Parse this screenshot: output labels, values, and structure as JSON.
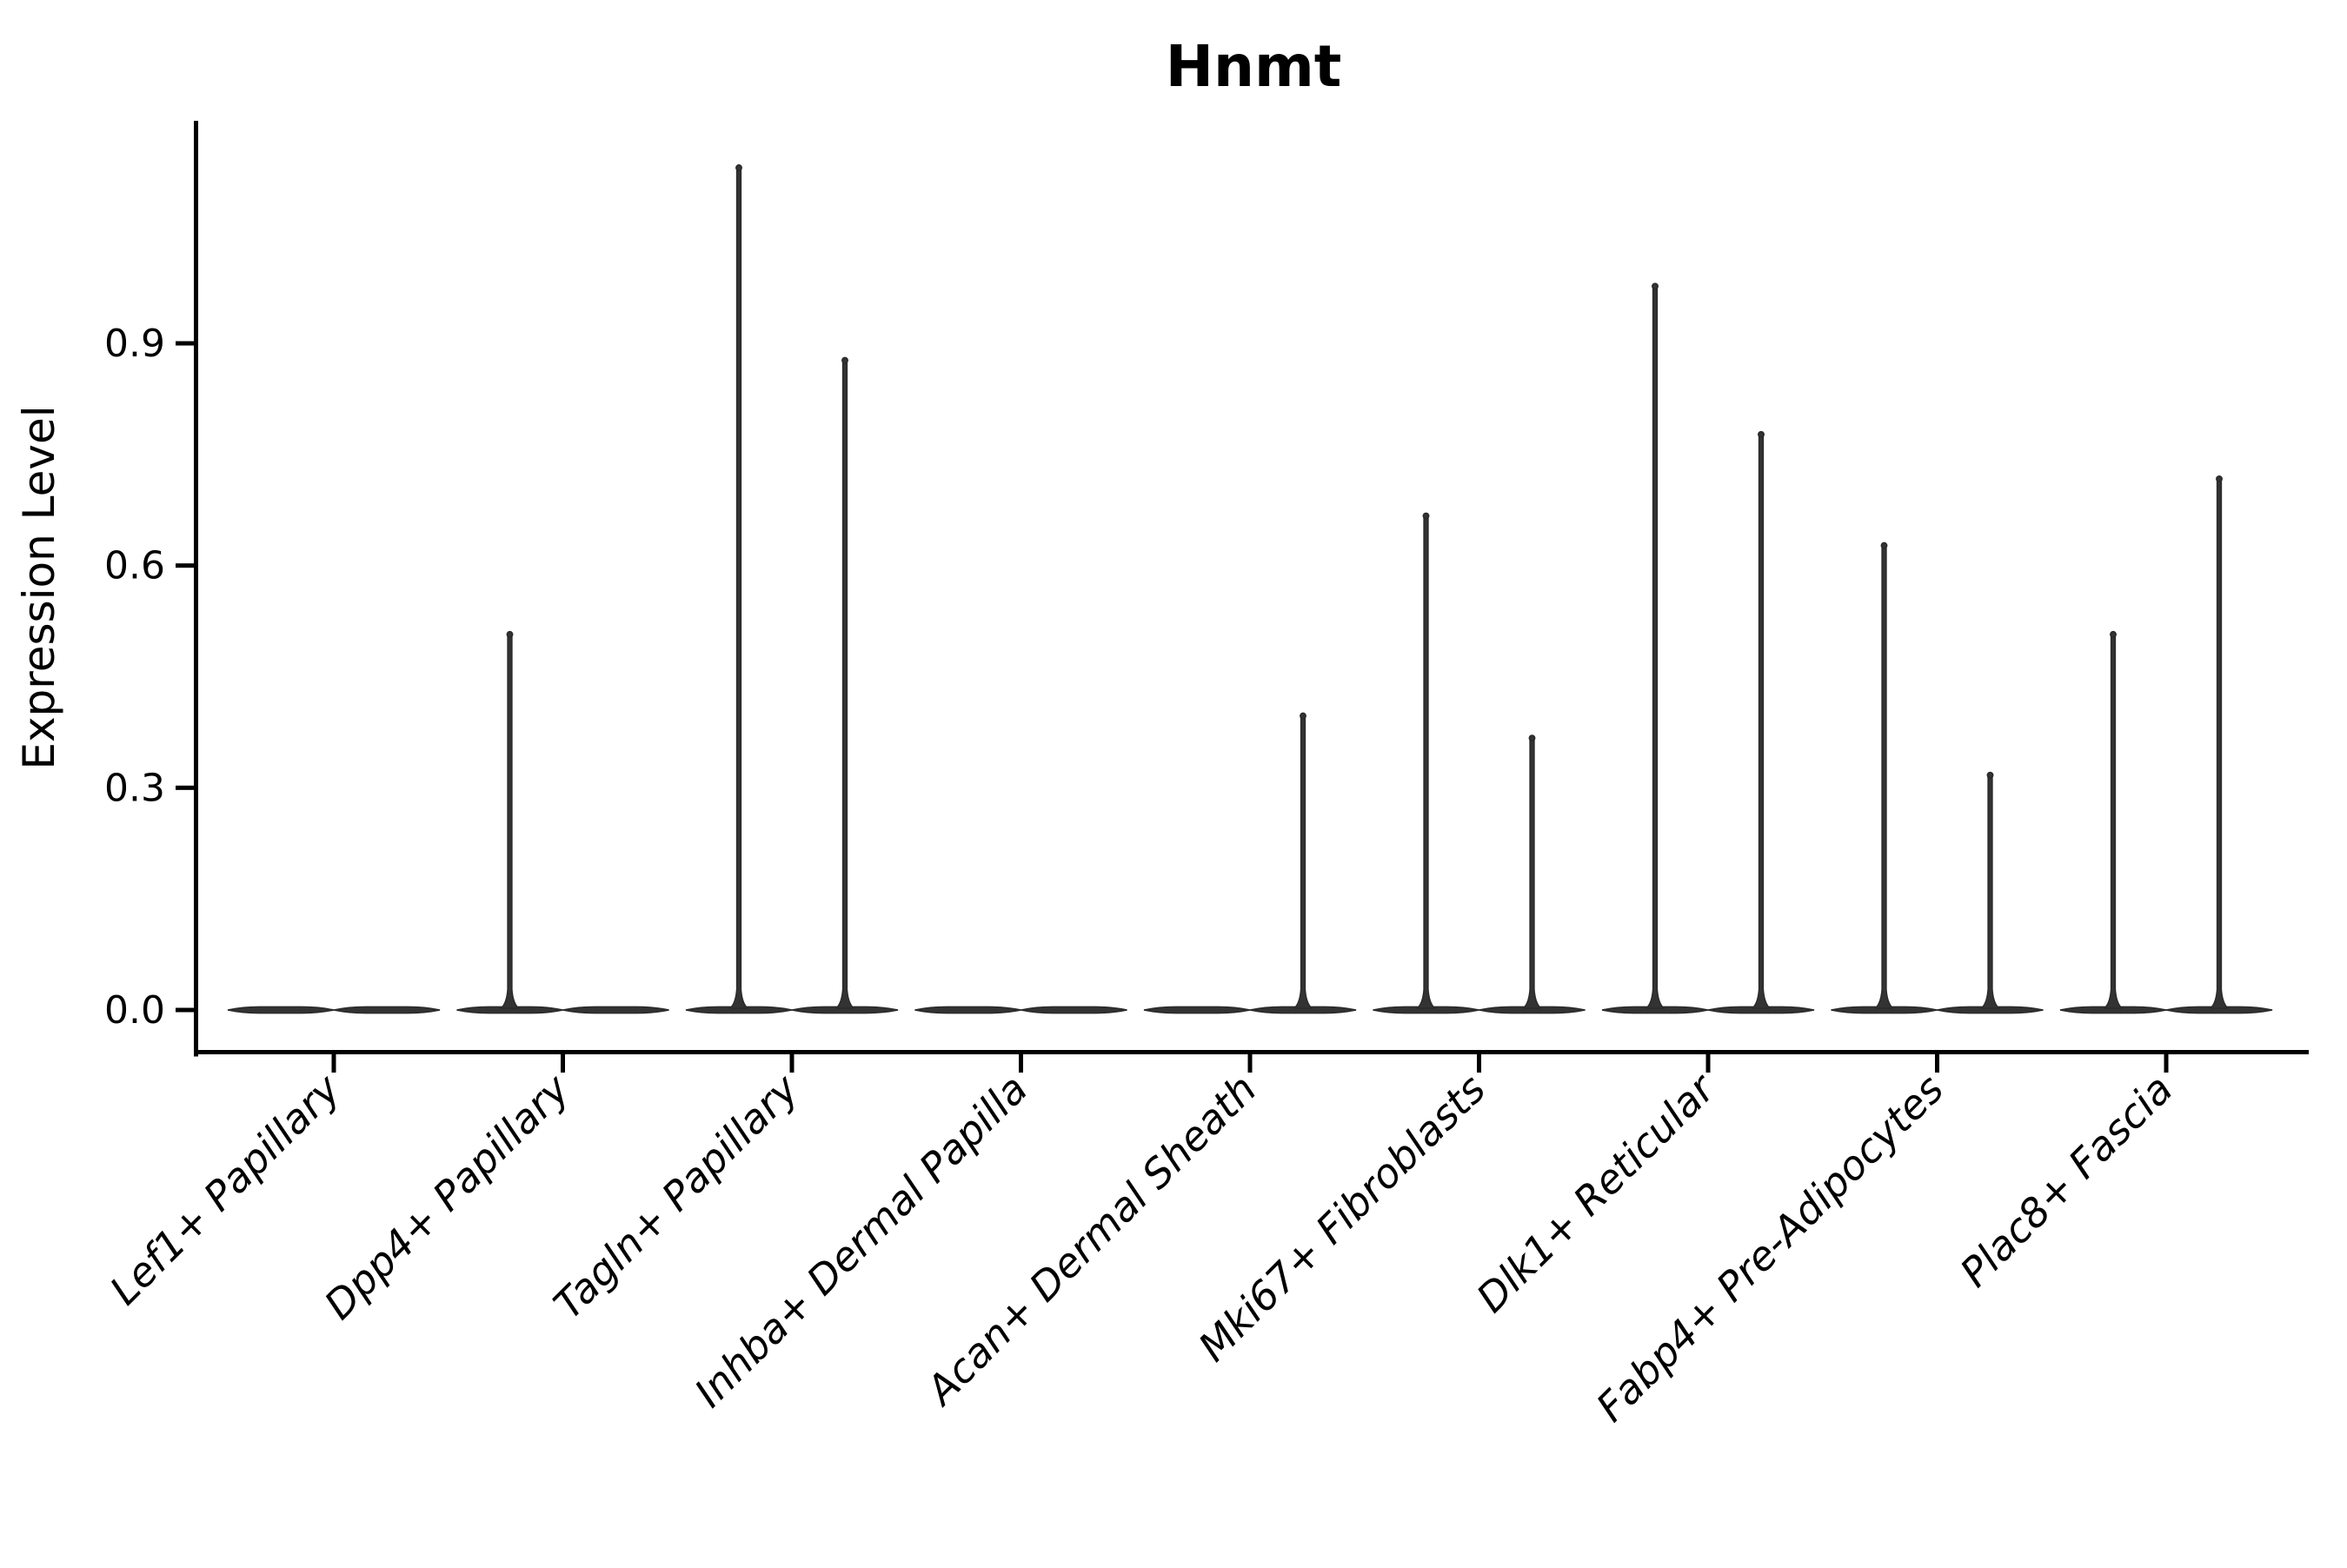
{
  "title": "Hnmt",
  "axes": {
    "ylabel": "Expression Level",
    "ytick_labels": [
      "0.0",
      "0.3",
      "0.6",
      "0.9"
    ],
    "xlabel": ""
  },
  "chart_data": {
    "type": "violin",
    "title": "Hnmt",
    "ylabel": "Expression Level",
    "xlabel": "",
    "categories": [
      "Lef1+ Papillary",
      "Dpp4+ Papillary",
      "Tagln+ Papillary",
      "Inhba+ Dermal Papilla",
      "Acan+ Dermal Sheath",
      "Mki67+ Fibroblasts",
      "Dlk1+ Reticular",
      "Fabp4+ Pre-Adipocytes",
      "Plac8+ Fascia"
    ],
    "violins_per_category": 2,
    "series": [
      {
        "name": "left-violin",
        "max_expression": [
          0,
          0.51,
          1.14,
          0,
          0,
          0.67,
          0.98,
          0.63,
          0.51
        ]
      },
      {
        "name": "right-violin",
        "max_expression": [
          0,
          0,
          0.88,
          0,
          0.4,
          0.37,
          0.78,
          0.32,
          0.72
        ]
      }
    ],
    "baseline_value": 0.0,
    "yticks": [
      0.0,
      0.3,
      0.6,
      0.9
    ],
    "ylim": [
      -0.06,
      1.2
    ],
    "grid": false,
    "legend": "none",
    "x_tick_rotation": 45,
    "x_tick_style": "italic",
    "colors": {
      "violin": "#333333",
      "violin_edge": "#2a2a2a",
      "axis": "#000000",
      "text": "#000000",
      "background": "#ffffff"
    }
  }
}
